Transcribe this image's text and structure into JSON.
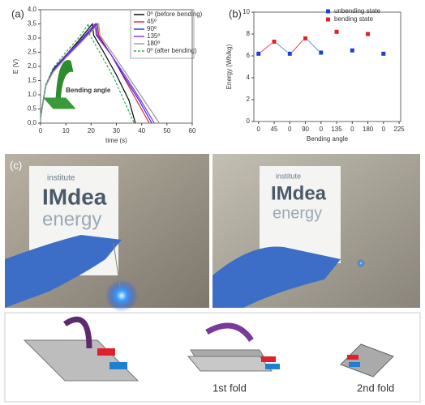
{
  "panels": {
    "a": "(a)",
    "b": "(b)",
    "c": "(c)"
  },
  "chart_data": [
    {
      "type": "line",
      "xlabel": "time (s)",
      "ylabel": "E (V)",
      "annotation": "Bending angle",
      "xlim": [
        0,
        60
      ],
      "xticks": [
        0,
        10,
        20,
        30,
        40,
        50,
        60
      ],
      "ylim": [
        0,
        4
      ],
      "yticks": [
        {
          "value": 0,
          "label": "0,0"
        },
        {
          "value": 0.5,
          "label": "0,5"
        },
        {
          "value": 1,
          "label": "1,0"
        },
        {
          "value": 1.5,
          "label": "1,5"
        },
        {
          "value": 2,
          "label": "2,0"
        },
        {
          "value": 2.5,
          "label": "2,5"
        },
        {
          "value": 3,
          "label": "3,0"
        },
        {
          "value": 3.5,
          "label": "3,5"
        },
        {
          "value": 4,
          "label": "4,0"
        }
      ],
      "series": [
        {
          "name": "0º (before bending)",
          "color": "#000000",
          "x": [
            0,
            2,
            5,
            10,
            15,
            20.5,
            21,
            25,
            30,
            35,
            37.5
          ],
          "values": [
            0.2,
            1.3,
            1.9,
            2.4,
            2.9,
            3.5,
            3.1,
            2.5,
            1.7,
            0.8,
            0
          ]
        },
        {
          "name": "45º",
          "color": "#e8202a",
          "x": [
            0,
            2,
            5,
            10,
            15,
            22.5,
            23,
            28,
            33,
            38,
            43
          ],
          "values": [
            0.2,
            1.3,
            1.85,
            2.35,
            2.8,
            3.5,
            3.1,
            2.4,
            1.6,
            0.8,
            0
          ]
        },
        {
          "name": "90º",
          "color": "#2130d8",
          "x": [
            0,
            2,
            5,
            10,
            15,
            22,
            22.5,
            28,
            33,
            39,
            44
          ],
          "values": [
            0.2,
            1.3,
            1.85,
            2.35,
            2.8,
            3.5,
            3.1,
            2.4,
            1.65,
            0.8,
            0
          ]
        },
        {
          "name": "135º",
          "color": "#8a2be2",
          "x": [
            0,
            2,
            5,
            10,
            15,
            21.5,
            22,
            28,
            34,
            40,
            45
          ],
          "values": [
            0.2,
            1.3,
            1.85,
            2.4,
            2.85,
            3.5,
            3.1,
            2.4,
            1.6,
            0.75,
            0
          ]
        },
        {
          "name": "180º",
          "color": "#999999",
          "x": [
            0,
            2,
            5,
            10,
            15,
            23,
            23.5,
            29,
            35,
            41,
            47
          ],
          "values": [
            0.2,
            1.3,
            1.8,
            2.3,
            2.75,
            3.5,
            3.1,
            2.4,
            1.6,
            0.8,
            0
          ]
        },
        {
          "name": "0º (after bending)",
          "color": "#22b14c",
          "dashed": true,
          "x": [
            0,
            2,
            5,
            10,
            15,
            19,
            19.5,
            24,
            29,
            33,
            37
          ],
          "values": [
            0.2,
            1.35,
            1.95,
            2.5,
            3.0,
            3.5,
            3.1,
            2.4,
            1.6,
            0.8,
            0
          ]
        }
      ]
    },
    {
      "type": "scatter",
      "xlabel": "Bending angle",
      "ylabel": "Energy (Wh/kg)",
      "xlim": [
        -0.3,
        9.1
      ],
      "xticks": [
        {
          "value": 0,
          "label": "0"
        },
        {
          "value": 1,
          "label": "45"
        },
        {
          "value": 2,
          "label": "0"
        },
        {
          "value": 3,
          "label": "90"
        },
        {
          "value": 4,
          "label": "0"
        },
        {
          "value": 5,
          "label": "135"
        },
        {
          "value": 6,
          "label": "0"
        },
        {
          "value": 7,
          "label": "180"
        },
        {
          "value": 8,
          "label": "0"
        },
        {
          "value": 9,
          "label": "225"
        }
      ],
      "ylim": [
        0,
        10
      ],
      "yticks": [
        0,
        2,
        4,
        6,
        8,
        10
      ],
      "series": [
        {
          "name": "unbending state",
          "color": "#1f3fd0",
          "x": [
            0,
            2,
            4,
            6,
            8
          ],
          "values": [
            6.2,
            6.2,
            6.3,
            6.5,
            6.2
          ]
        },
        {
          "name": "bending state",
          "color": "#e0202a",
          "x": [
            1,
            3,
            5,
            7
          ],
          "values": [
            7.3,
            7.6,
            8.2,
            8.0
          ]
        }
      ]
    }
  ],
  "photo": {
    "line1": "institute",
    "line2": "IMdea",
    "line3": "energy"
  },
  "folds": {
    "first": "1st fold",
    "second": "2nd fold"
  }
}
